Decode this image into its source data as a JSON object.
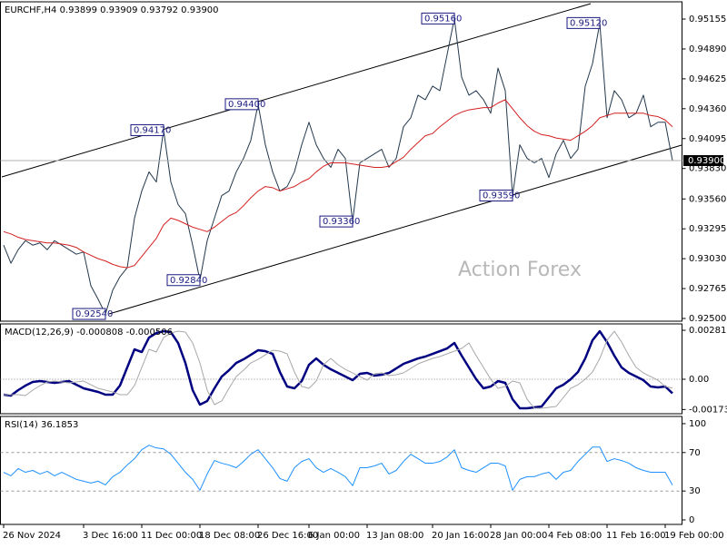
{
  "chart_data": [
    {
      "type": "line",
      "title": "EURCHF,H4 0.93899 0.93909 0.93792 0.93900",
      "watermark": "Action Forex",
      "ylim": [
        0.92476,
        0.95308
      ],
      "yticks": [
        0.95155,
        {
          "value": 0.9489,
          "label": "0.94890"
        },
        0.94625,
        {
          "value": 0.9436,
          "label": "0.94360"
        },
        0.94095,
        {
          "value": 0.9383,
          "label": "0.93830"
        },
        {
          "value": 0.9356,
          "label": "0.93560"
        },
        0.93295,
        {
          "value": 0.9303,
          "label": "0.93030"
        },
        0.92765,
        {
          "value": 0.925,
          "label": "0.92500"
        }
      ],
      "series": [
        {
          "color": "#23384d",
          "values": [
            0.9315,
            0.9299,
            0.9311,
            0.9319,
            0.9315,
            0.9317,
            0.9311,
            0.9319,
            0.9315,
            0.9311,
            0.9307,
            0.9309,
            0.9279,
            0.9267,
            0.9254,
            0.9275,
            0.9287,
            0.9295,
            0.9339,
            0.9363,
            0.938,
            0.9371,
            0.9417,
            0.9371,
            0.9351,
            0.9343,
            0.9315,
            0.9284,
            0.9319,
            0.9339,
            0.9359,
            0.9363,
            0.938,
            0.9392,
            0.9408,
            0.944,
            0.9404,
            0.938,
            0.9363,
            0.9367,
            0.938,
            0.9404,
            0.9424,
            0.9404,
            0.9392,
            0.9384,
            0.94,
            0.9392,
            0.9336,
            0.9388,
            0.9392,
            0.9396,
            0.94,
            0.9384,
            0.9392,
            0.942,
            0.9428,
            0.9448,
            0.9444,
            0.9456,
            0.9452,
            0.9484,
            0.9516,
            0.9464,
            0.9448,
            0.9452,
            0.9444,
            0.9432,
            0.9472,
            0.9452,
            0.9359,
            0.9404,
            0.9392,
            0.9388,
            0.9392,
            0.9375,
            0.9396,
            0.9408,
            0.9392,
            0.94,
            0.9456,
            0.9476,
            0.9512,
            0.9428,
            0.9452,
            0.9444,
            0.9428,
            0.9432,
            0.9448,
            0.942,
            0.9424,
            0.9424,
            0.939
          ],
          "value_labels": [
            null,
            null,
            null,
            null,
            null,
            null,
            null,
            null,
            null,
            null,
            null,
            null,
            null,
            null,
            "0.92540",
            null,
            null,
            null,
            null,
            null,
            null,
            null,
            "0.94170",
            null,
            null,
            null,
            null,
            "0.92840",
            null,
            null,
            null,
            null,
            null,
            null,
            null,
            "0.94400",
            null,
            null,
            null,
            null,
            null,
            null,
            null,
            null,
            null,
            null,
            null,
            null,
            "0.93360",
            null,
            null,
            null,
            null,
            null,
            null,
            null,
            null,
            null,
            null,
            null,
            null,
            null,
            "0.95160",
            null,
            null,
            null,
            null,
            null,
            null,
            null,
            "0.93590",
            null,
            null,
            null,
            null,
            null,
            null,
            null,
            null,
            null,
            null,
            null,
            "0.95120",
            null,
            null,
            null,
            null,
            null,
            null,
            null,
            null,
            null,
            "0.93900"
          ]
        },
        {
          "color": "#d42020",
          "values": [
            0.9327,
            0.9325,
            0.9322,
            0.932,
            0.9319,
            0.9318,
            0.9317,
            0.9317,
            0.9316,
            0.9315,
            0.9313,
            0.9309,
            0.9306,
            0.9303,
            0.9301,
            0.9298,
            0.9296,
            0.9295,
            0.9297,
            0.9305,
            0.9313,
            0.9321,
            0.9333,
            0.9339,
            0.9337,
            0.9334,
            0.9331,
            0.9329,
            0.9327,
            0.9331,
            0.9336,
            0.9341,
            0.9344,
            0.935,
            0.9357,
            0.9363,
            0.9367,
            0.9366,
            0.9363,
            0.9365,
            0.9367,
            0.9371,
            0.9374,
            0.938,
            0.9385,
            0.9388,
            0.9388,
            0.9388,
            0.9387,
            0.9386,
            0.9385,
            0.9384,
            0.9384,
            0.9385,
            0.9389,
            0.9393,
            0.94,
            0.9406,
            0.9412,
            0.9414,
            0.942,
            0.9425,
            0.943,
            0.9433,
            0.9435,
            0.9436,
            0.9437,
            0.9437,
            0.9441,
            0.9444,
            0.9436,
            0.9428,
            0.9421,
            0.9416,
            0.9413,
            0.9412,
            0.941,
            0.9409,
            0.9408,
            0.9412,
            0.9416,
            0.9421,
            0.9428,
            0.943,
            0.9432,
            0.9432,
            0.9432,
            0.9432,
            0.9432,
            0.943,
            0.9429,
            0.9426,
            0.942
          ]
        }
      ]
    },
    {
      "type": "line",
      "title": "MACD(12,26,9) -0.000808 -0.000506",
      "zero_line": true,
      "ylim": [
        -0.00198,
        0.00318
      ],
      "yticks": [
        0.002813,
        {
          "value": 0,
          "label": "0.00"
        },
        -0.001737
      ],
      "series": [
        {
          "color": "#000080",
          "values": [
            -0.000886,
            -0.000938,
            -0.000625,
            -0.000365,
            -0.000156,
            -0.000104,
            -0.000156,
            -0.000208,
            -0.000156,
            -0.000104,
            -0.000313,
            -0.000521,
            -0.000625,
            -0.000729,
            -0.000886,
            -0.000886,
            -0.000365,
            0.000677,
            0.001719,
            0.001563,
            0.002397,
            0.002657,
            0.002761,
            0.002709,
            0.002084,
            0.000938,
            -0.000625,
            -0.001459,
            -0.00125,
            -0.000521,
            0.000156,
            0.000521,
            0.000938,
            0.001146,
            0.001407,
            0.001667,
            0.001615,
            0.001459,
            0.000417,
            -0.000417,
            -0.000521,
            -0.000104,
            0.000834,
            0.001198,
            0.000834,
            0.000573,
            0.000365,
            0.000156,
            -5.2e-05,
            0.000313,
            0.000365,
            0.000208,
            0.000261,
            0.000365,
            0.000625,
            0.000886,
            0.001042,
            0.001198,
            0.001303,
            0.001459,
            0.001615,
            0.001771,
            0.002084,
            0.001355,
            0.000677,
            0,
            -0.000521,
            -0.000417,
            -0.000104,
            -0.000208,
            -0.001146,
            -0.001667,
            -0.001667,
            -0.001615,
            -0.001563,
            -0.001042,
            -0.000521,
            -0.000313,
            0,
            0.000417,
            0.001198,
            0.00224,
            0.002761,
            0.002136,
            0.001355,
            0.000677,
            0.000365,
            0.000156,
            -5.2e-05,
            -0.000417,
            -0.000469,
            -0.000417,
            -0.000808
          ]
        },
        {
          "color": "#a8a8a8",
          "values": [
            -0.000886,
            -0.000886,
            -0.000886,
            -0.000938,
            -0.000625,
            -0.000365,
            -0.000156,
            -0.000104,
            -0.000156,
            -0.000208,
            -0.000156,
            -0.000104,
            -0.000313,
            -0.000521,
            -0.000625,
            -0.000729,
            -0.000886,
            -0.000886,
            -0.000365,
            0.000677,
            0.001719,
            0.001563,
            0.002397,
            0.002657,
            0.002761,
            0.002709,
            0.002084,
            0.000938,
            -0.000625,
            -0.001459,
            -0.00125,
            -0.000521,
            0.000156,
            0.000521,
            0.000938,
            0.001146,
            0.001407,
            0.001667,
            0.001615,
            0.001459,
            0.000417,
            -0.000417,
            -0.000521,
            -0.000104,
            0.000834,
            0.001198,
            0.000834,
            0.000573,
            0.000365,
            0.000156,
            -5.2e-05,
            0.000313,
            0.000365,
            0.000208,
            0.000261,
            0.000365,
            0.000625,
            0.000886,
            0.001042,
            0.001198,
            0.001303,
            0.001459,
            0.001615,
            0.001771,
            0.002084,
            0.001355,
            0.000677,
            0,
            -0.000521,
            -0.000417,
            -0.000104,
            -0.000208,
            -0.001146,
            -0.001667,
            -0.001667,
            -0.001615,
            -0.001563,
            -0.001042,
            -0.000521,
            -0.000313,
            0,
            0.000417,
            0.001198,
            0.00224,
            0.002761,
            0.002136,
            0.001355,
            0.000677,
            0.000365,
            0.000156,
            -5.2e-05,
            -0.000417,
            -0.000506
          ]
        }
      ]
    },
    {
      "type": "line",
      "title": "RSI(14) 36.1853",
      "grid": "dashed",
      "ylim": [
        -4.7,
        107.5
      ],
      "yticks": [
        100,
        70,
        30,
        0
      ],
      "categories": [
        "26 Nov 2024",
        null,
        null,
        null,
        null,
        null,
        null,
        null,
        null,
        null,
        null,
        "3 Dec 16:00",
        null,
        null,
        null,
        null,
        null,
        null,
        null,
        "11 Dec 00:00",
        null,
        null,
        null,
        null,
        null,
        null,
        null,
        "18 Dec 08:00",
        null,
        null,
        null,
        null,
        null,
        null,
        null,
        "26 Dec 16:00",
        null,
        null,
        null,
        null,
        null,
        null,
        "6 Jan 00:00",
        null,
        null,
        null,
        null,
        null,
        null,
        null,
        "13 Jan 08:00",
        null,
        null,
        null,
        null,
        null,
        null,
        null,
        null,
        "20 Jan 16:00",
        null,
        null,
        null,
        null,
        null,
        null,
        null,
        "28 Jan 00:00",
        null,
        null,
        null,
        null,
        null,
        null,
        null,
        "4 Feb 08:00",
        null,
        null,
        null,
        null,
        null,
        null,
        null,
        "11 Feb 16:00",
        null,
        null,
        null,
        null,
        null,
        null,
        null,
        "19 Feb 00:00",
        null
      ],
      "series": [
        {
          "color": "#1e90ff",
          "values": [
            49.5,
            45.8,
            53.3,
            49.5,
            51.4,
            47.7,
            50.5,
            45.8,
            49.5,
            45.8,
            42.1,
            40.2,
            38.3,
            40.2,
            36.4,
            44.9,
            49.5,
            57.0,
            63.6,
            72.9,
            77.6,
            74.8,
            73.8,
            68.2,
            58.9,
            49.5,
            42.1,
            30.8,
            47.7,
            61.7,
            58.9,
            57.0,
            54.2,
            60.7,
            68.2,
            72.9,
            63.6,
            54.2,
            43.0,
            40.2,
            54.2,
            60.7,
            63.6,
            54.2,
            49.5,
            53.3,
            49.5,
            44.9,
            35.5,
            54.2,
            54.2,
            56.1,
            58.9,
            47.7,
            51.4,
            60.7,
            68.2,
            63.6,
            58.9,
            58.9,
            60.7,
            65.4,
            72.9,
            54.2,
            51.4,
            49.5,
            54.2,
            58.9,
            58.9,
            56.1,
            30.8,
            42.1,
            44.9,
            44.9,
            47.7,
            49.5,
            42.1,
            49.5,
            51.4,
            60.7,
            68.2,
            75.7,
            75.7,
            60.7,
            63.6,
            61.7,
            58.9,
            54.2,
            51.4,
            49.5,
            49.5,
            49.5,
            36.2
          ]
        }
      ]
    }
  ]
}
